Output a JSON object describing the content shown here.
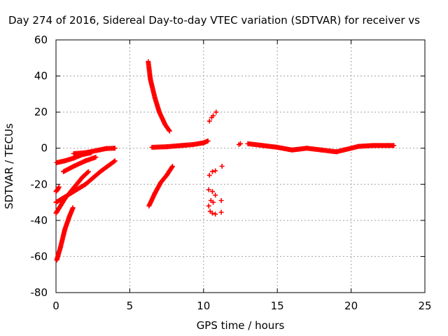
{
  "chart_data": {
    "type": "scatter",
    "title": "Day 274 of 2016, Sidereal Day-to-day VTEC variation (SDTVAR) for receiver vs",
    "xlabel": "GPS time / hours",
    "ylabel": "SDTVAR / TECUs",
    "xlim": [
      0,
      25
    ],
    "ylim": [
      -80,
      60
    ],
    "grid": true,
    "marker": "+",
    "marker_color": "#ff0000",
    "x_ticks": [
      0,
      5,
      10,
      15,
      20,
      25
    ],
    "y_ticks": [
      -80,
      -60,
      -40,
      -20,
      0,
      20,
      40,
      60
    ],
    "segments": [
      {
        "name": "arc-near-zero-a",
        "points": [
          [
            0.05,
            -62
          ],
          [
            0.3,
            -55
          ],
          [
            0.6,
            -45
          ],
          [
            0.9,
            -38
          ],
          [
            1.15,
            -33
          ]
        ]
      },
      {
        "name": "arc-near-zero-b",
        "points": [
          [
            0.0,
            -36
          ],
          [
            0.6,
            -28
          ],
          [
            1.2,
            -22
          ],
          [
            1.8,
            -16
          ],
          [
            2.2,
            -13
          ]
        ]
      },
      {
        "name": "arc-near-zero-c",
        "points": [
          [
            0.0,
            -30
          ],
          [
            1.0,
            -25
          ],
          [
            2.0,
            -20
          ],
          [
            3.0,
            -13
          ],
          [
            4.0,
            -7
          ]
        ]
      },
      {
        "name": "arc-near-zero-d",
        "points": [
          [
            0.5,
            -13
          ],
          [
            1.2,
            -10
          ],
          [
            2.0,
            -7
          ],
          [
            2.7,
            -5
          ]
        ]
      },
      {
        "name": "arc-near-zero-e",
        "points": [
          [
            0.05,
            -8
          ],
          [
            0.6,
            -7
          ],
          [
            1.2,
            -5.5
          ],
          [
            1.8,
            -3.5
          ],
          [
            2.4,
            -2.5
          ]
        ]
      },
      {
        "name": "arc-near-zero-f",
        "points": [
          [
            1.2,
            -3
          ],
          [
            2.0,
            -2.5
          ],
          [
            2.8,
            -1.2
          ],
          [
            3.4,
            -0.2
          ],
          [
            4.0,
            0
          ]
        ]
      },
      {
        "name": "arc-short-left",
        "points": [
          [
            0.0,
            -24
          ],
          [
            0.1,
            -23
          ],
          [
            0.2,
            -21.5
          ]
        ]
      },
      {
        "name": "arc-six-up",
        "points": [
          [
            6.25,
            48
          ],
          [
            6.4,
            38
          ],
          [
            6.7,
            28
          ],
          [
            7.0,
            20
          ],
          [
            7.4,
            13
          ],
          [
            7.7,
            9.5
          ]
        ]
      },
      {
        "name": "arc-six-down",
        "points": [
          [
            6.3,
            -32
          ],
          [
            6.7,
            -25
          ],
          [
            7.1,
            -19
          ],
          [
            7.5,
            -15
          ],
          [
            7.9,
            -10
          ]
        ]
      },
      {
        "name": "arc-flat-mid",
        "points": [
          [
            6.5,
            0.5
          ],
          [
            7.5,
            0.8
          ],
          [
            8.5,
            1.5
          ],
          [
            9.3,
            2
          ],
          [
            10.0,
            3
          ],
          [
            10.3,
            4
          ]
        ]
      },
      {
        "name": "scatter-eleven",
        "points": [
          [
            10.4,
            15
          ],
          [
            10.55,
            17
          ],
          [
            10.65,
            18
          ],
          [
            10.85,
            20
          ],
          [
            10.4,
            -15
          ],
          [
            10.6,
            -13
          ],
          [
            10.8,
            -12.5
          ],
          [
            11.25,
            -10
          ],
          [
            10.35,
            -23
          ],
          [
            10.6,
            -24
          ],
          [
            10.8,
            -26
          ],
          [
            10.5,
            -29
          ],
          [
            10.65,
            -30
          ],
          [
            11.2,
            -29
          ],
          [
            10.35,
            -32
          ],
          [
            10.45,
            -35
          ],
          [
            10.6,
            -36
          ],
          [
            10.8,
            -36.5
          ],
          [
            11.2,
            -35.5
          ]
        ]
      },
      {
        "name": "point-twelve",
        "points": [
          [
            12.4,
            2
          ],
          [
            12.5,
            2.5
          ]
        ]
      },
      {
        "name": "arc-right",
        "points": [
          [
            13.0,
            2.5
          ],
          [
            14.0,
            1.5
          ],
          [
            15.0,
            0.5
          ],
          [
            16.0,
            -1
          ],
          [
            17.0,
            0
          ],
          [
            18.0,
            -1
          ],
          [
            19.0,
            -2
          ],
          [
            19.5,
            -1
          ],
          [
            20.5,
            1
          ],
          [
            21.5,
            1.5
          ],
          [
            22.5,
            1.5
          ],
          [
            22.9,
            1.5
          ]
        ]
      }
    ]
  }
}
